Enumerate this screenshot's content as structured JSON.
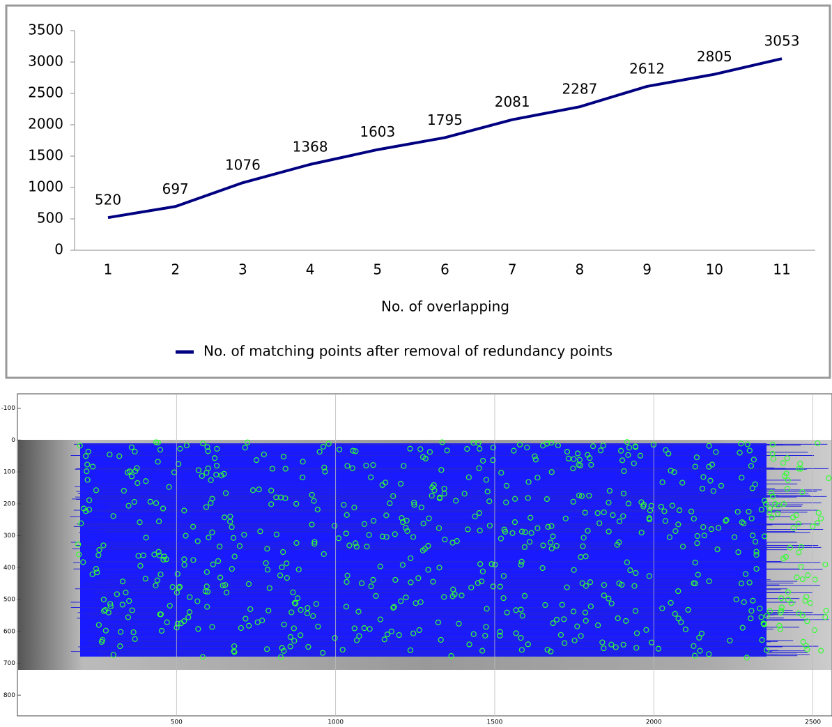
{
  "chart_data": [
    {
      "type": "line",
      "x_label": "No. of overlapping",
      "categories": [
        "1",
        "2",
        "3",
        "4",
        "5",
        "6",
        "7",
        "8",
        "9",
        "10",
        "11"
      ],
      "series": [
        {
          "name": "No. of matching points after removal of redundancy points",
          "color": "#000080",
          "values": [
            520,
            697,
            1076,
            1368,
            1603,
            1795,
            2081,
            2287,
            2612,
            2805,
            3053
          ]
        }
      ],
      "ylim": [
        0,
        3500
      ],
      "yticks": [
        0,
        500,
        1000,
        1500,
        2000,
        2500,
        3000,
        3500
      ],
      "data_labels": true,
      "legend": "bottom",
      "grid": false
    },
    {
      "type": "image",
      "xlim": [
        0,
        2560
      ],
      "ylim": [
        -145,
        865
      ],
      "xticks": [
        500,
        1000,
        1500,
        2000,
        2500
      ],
      "yticks": [
        -100,
        0,
        100,
        200,
        300,
        400,
        500,
        600,
        700,
        800
      ],
      "grid": true
    }
  ]
}
